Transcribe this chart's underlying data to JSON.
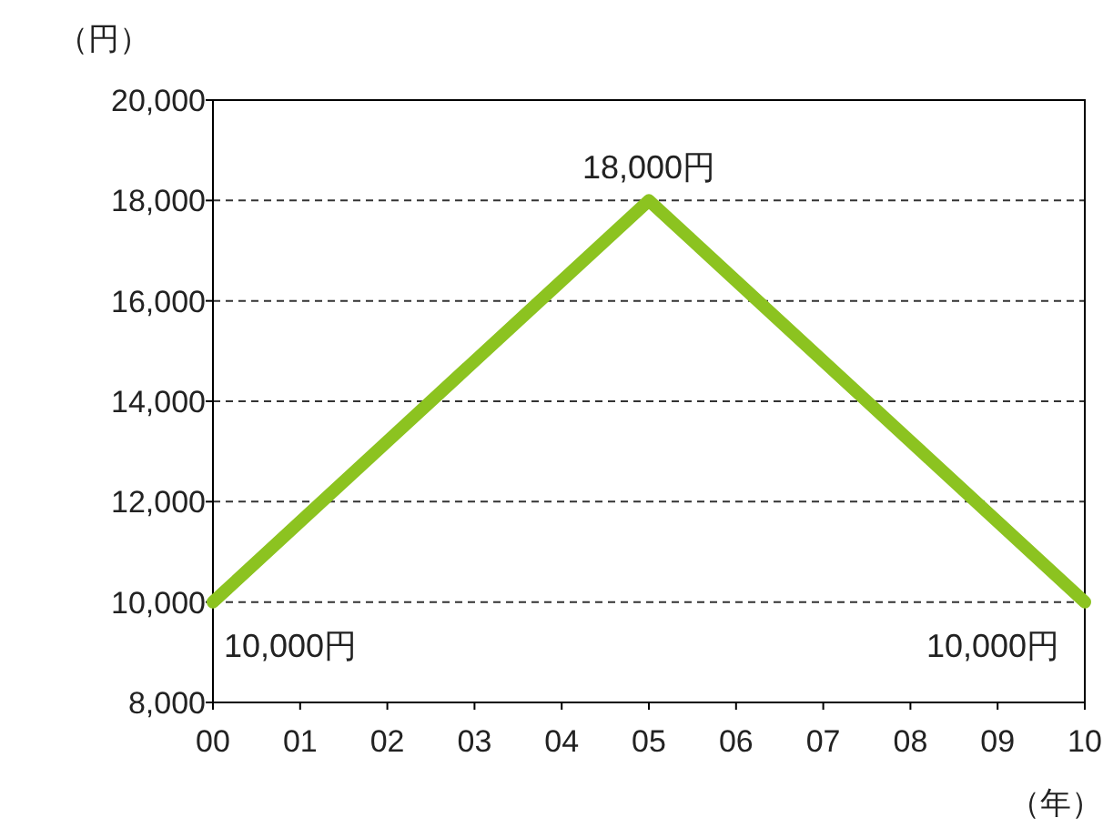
{
  "chart_data": {
    "type": "line",
    "ylabel": "（円）",
    "xlabel": "（年）",
    "categories": [
      "00",
      "01",
      "02",
      "03",
      "04",
      "05",
      "06",
      "07",
      "08",
      "09",
      "10"
    ],
    "series": [
      {
        "color": "#8cc320",
        "values": [
          10000,
          11600,
          13200,
          14800,
          16400,
          18000,
          16400,
          14800,
          13200,
          11600,
          10000
        ]
      }
    ],
    "ylim": [
      8000,
      20000
    ],
    "yticks": [
      {
        "value": 8000,
        "label": "8,000"
      },
      {
        "value": 10000,
        "label": "10,000"
      },
      {
        "value": 12000,
        "label": "12,000"
      },
      {
        "value": 14000,
        "label": "14,000"
      },
      {
        "value": 16000,
        "label": "16,000"
      },
      {
        "value": 18000,
        "label": "18,000"
      },
      {
        "value": 20000,
        "label": "20,000"
      }
    ],
    "grid": "y",
    "annotations": [
      {
        "text": "18,000円",
        "x": "05",
        "y": 18000
      },
      {
        "text": "10,000円",
        "x": "00",
        "y": 10000
      },
      {
        "text": "10,000円",
        "x": "10",
        "y": 10000
      }
    ]
  }
}
